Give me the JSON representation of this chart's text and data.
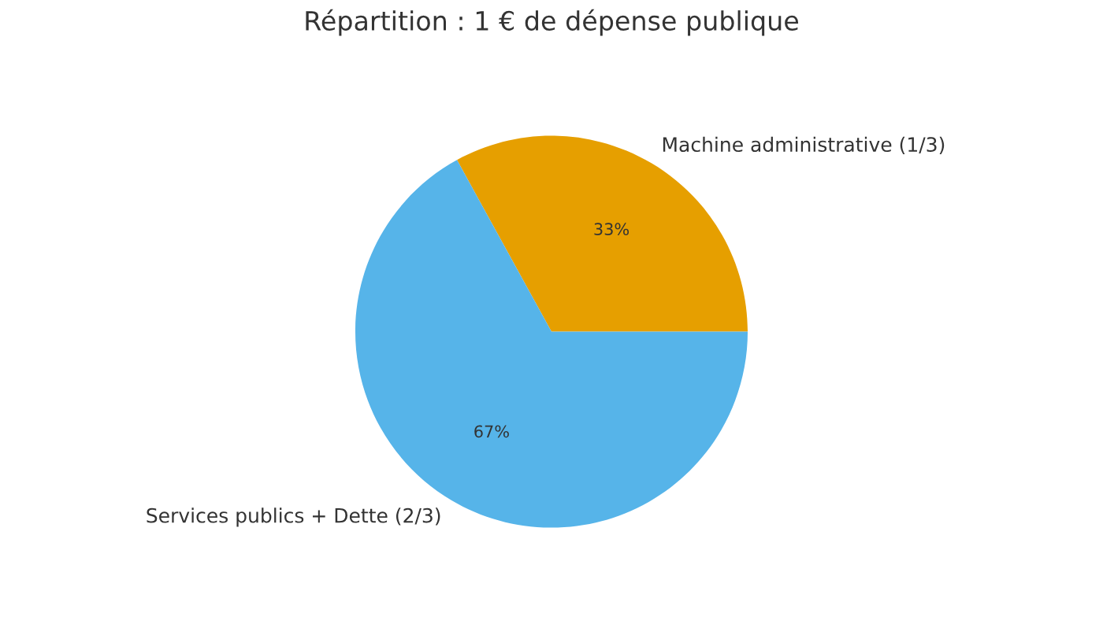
{
  "chart_data": {
    "type": "pie",
    "title": "Répartition : 1 € de dépense publique",
    "categories": [
      "Machine administrative (1/3)",
      "Services publics + Dette (2/3)"
    ],
    "values": [
      33,
      67
    ],
    "colors": [
      "#e69f00",
      "#56b4e9"
    ],
    "value_labels": [
      "33%",
      "67%"
    ],
    "legend": false
  }
}
